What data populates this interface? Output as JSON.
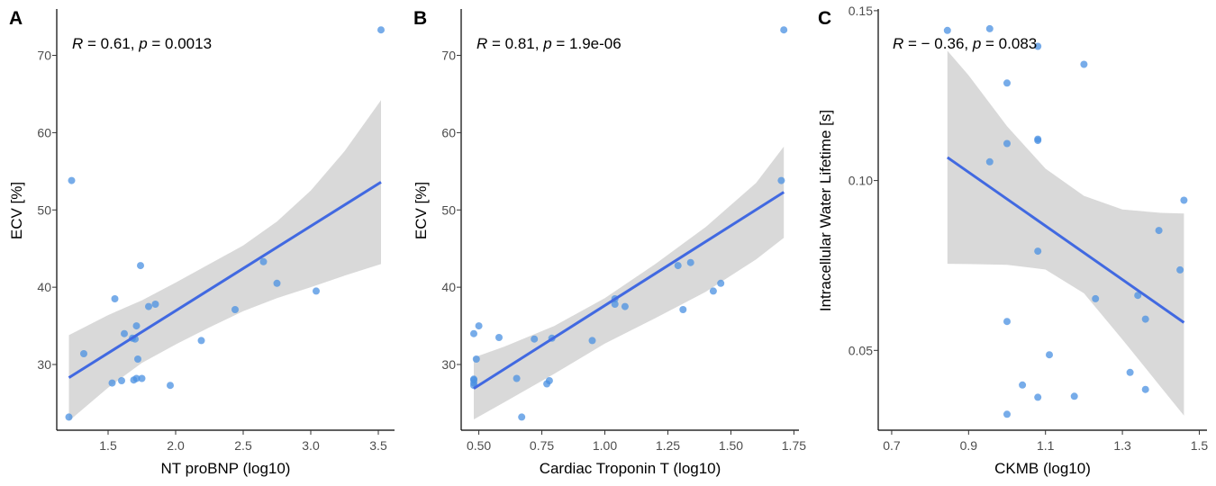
{
  "colors": {
    "point": "#4a90e2",
    "line": "#4169e1",
    "ribbon": "#d9d9d9",
    "axis": "#000000"
  },
  "chart_data": [
    {
      "type": "scatter",
      "panel": "A",
      "xlabel": "NT proBNP (log10)",
      "ylabel": "ECV [%]",
      "annotation": {
        "r_label": "R",
        "r_text": " = 0.61, ",
        "p_label": "p",
        "p_text": " = 0.0013"
      },
      "xlim": [
        1.12,
        3.62
      ],
      "ylim": [
        21.5,
        76
      ],
      "xticks": [
        1.5,
        2.0,
        2.5,
        3.0,
        3.5
      ],
      "xtick_labels": [
        "1.5",
        "2.0",
        "2.5",
        "3.0",
        "3.5"
      ],
      "yticks": [
        30,
        40,
        50,
        60,
        70
      ],
      "ytick_labels": [
        "30",
        "40",
        "50",
        "60",
        "70"
      ],
      "points": [
        [
          1.21,
          23.2
        ],
        [
          1.23,
          53.8
        ],
        [
          1.32,
          31.4
        ],
        [
          1.53,
          27.6
        ],
        [
          1.55,
          38.5
        ],
        [
          1.6,
          27.9
        ],
        [
          1.62,
          34.0
        ],
        [
          1.68,
          33.4
        ],
        [
          1.7,
          33.3
        ],
        [
          1.69,
          28.0
        ],
        [
          1.71,
          28.2
        ],
        [
          1.71,
          35.0
        ],
        [
          1.72,
          30.7
        ],
        [
          1.74,
          42.8
        ],
        [
          1.75,
          28.2
        ],
        [
          1.8,
          37.5
        ],
        [
          1.85,
          37.8
        ],
        [
          1.96,
          27.3
        ],
        [
          2.19,
          33.1
        ],
        [
          2.44,
          37.1
        ],
        [
          2.65,
          43.3
        ],
        [
          2.75,
          40.5
        ],
        [
          3.04,
          39.5
        ],
        [
          3.52,
          73.3
        ]
      ],
      "fit": {
        "x": [
          1.21,
          3.52
        ],
        "y": [
          28.3,
          53.6
        ]
      },
      "ribbon": {
        "x": [
          1.21,
          1.5,
          1.75,
          2.0,
          2.25,
          2.5,
          2.75,
          3.0,
          3.25,
          3.52
        ],
        "upper": [
          33.8,
          36.4,
          38.3,
          40.6,
          43.0,
          45.4,
          48.5,
          52.5,
          57.6,
          64.2
        ],
        "lower": [
          22.7,
          27.0,
          30.2,
          32.6,
          34.8,
          36.9,
          38.6,
          40.0,
          41.5,
          43.0
        ]
      }
    },
    {
      "type": "scatter",
      "panel": "B",
      "xlabel": "Cardiac Troponin T (log10)",
      "ylabel": "ECV [%]",
      "annotation": {
        "r_label": "R",
        "r_text": " = 0.81, ",
        "p_label": "p",
        "p_text": " = 1.9e-06"
      },
      "xlim": [
        0.43,
        1.77
      ],
      "ylim": [
        21.5,
        76
      ],
      "xticks": [
        0.5,
        0.75,
        1.0,
        1.25,
        1.5,
        1.75
      ],
      "xtick_labels": [
        "0.50",
        "0.75",
        "1.00",
        "1.25",
        "1.50",
        "1.75"
      ],
      "yticks": [
        30,
        40,
        50,
        60,
        70
      ],
      "ytick_labels": [
        "30",
        "40",
        "50",
        "60",
        "70"
      ],
      "points": [
        [
          0.48,
          34.0
        ],
        [
          0.48,
          28.0
        ],
        [
          0.48,
          27.6
        ],
        [
          0.48,
          27.3
        ],
        [
          0.48,
          28.1
        ],
        [
          0.49,
          30.7
        ],
        [
          0.5,
          35.0
        ],
        [
          0.58,
          33.5
        ],
        [
          0.65,
          28.2
        ],
        [
          0.67,
          23.2
        ],
        [
          0.72,
          33.3
        ],
        [
          0.77,
          27.5
        ],
        [
          0.78,
          27.9
        ],
        [
          0.79,
          33.4
        ],
        [
          0.95,
          33.1
        ],
        [
          1.04,
          38.5
        ],
        [
          1.04,
          37.8
        ],
        [
          1.08,
          37.5
        ],
        [
          1.29,
          42.8
        ],
        [
          1.31,
          37.1
        ],
        [
          1.34,
          43.2
        ],
        [
          1.43,
          39.5
        ],
        [
          1.46,
          40.5
        ],
        [
          1.7,
          53.8
        ],
        [
          1.71,
          73.3
        ]
      ],
      "fit": {
        "x": [
          0.48,
          1.71
        ],
        "y": [
          26.9,
          52.3
        ]
      },
      "ribbon": {
        "x": [
          0.48,
          0.6,
          0.8,
          1.0,
          1.2,
          1.4,
          1.6,
          1.71
        ],
        "upper": [
          30.9,
          32.3,
          35.0,
          38.6,
          43.0,
          47.8,
          53.5,
          58.2
        ],
        "lower": [
          22.9,
          25.1,
          28.8,
          32.7,
          36.0,
          39.4,
          43.6,
          46.4
        ]
      }
    },
    {
      "type": "scatter",
      "panel": "C",
      "xlabel": "CKMB (log10)",
      "ylabel": "Intracellular Water Lifetime [s]",
      "annotation": {
        "r_label": "R",
        "r_text": " = − 0.36, ",
        "p_label": "p",
        "p_text": " = 0.083"
      },
      "xlim": [
        0.665,
        1.52
      ],
      "ylim": [
        0.0265,
        0.1505
      ],
      "xticks": [
        0.7,
        0.9,
        1.1,
        1.3,
        1.5
      ],
      "xtick_labels": [
        "0.7",
        "0.9",
        "1.1",
        "1.3",
        "1.5"
      ],
      "yticks": [
        0.05,
        0.1,
        0.15
      ],
      "ytick_labels": [
        "0.05",
        "0.10",
        "0.15"
      ],
      "points": [
        [
          0.845,
          0.1442
        ],
        [
          0.955,
          0.1447
        ],
        [
          1.08,
          0.1395
        ],
        [
          1.2,
          0.1342
        ],
        [
          1.0,
          0.1287
        ],
        [
          1.08,
          0.1122
        ],
        [
          1.08,
          0.1118
        ],
        [
          1.0,
          0.1109
        ],
        [
          0.955,
          0.1055
        ],
        [
          1.46,
          0.0942
        ],
        [
          1.395,
          0.0853
        ],
        [
          1.08,
          0.0792
        ],
        [
          1.45,
          0.0737
        ],
        [
          1.23,
          0.0652
        ],
        [
          1.34,
          0.0662
        ],
        [
          1.36,
          0.0592
        ],
        [
          1.0,
          0.0585
        ],
        [
          1.11,
          0.0487
        ],
        [
          1.32,
          0.0435
        ],
        [
          1.04,
          0.0398
        ],
        [
          1.36,
          0.0385
        ],
        [
          1.08,
          0.0362
        ],
        [
          1.175,
          0.0365
        ],
        [
          1.0,
          0.0312
        ]
      ],
      "fit": {
        "x": [
          0.845,
          1.46
        ],
        "y": [
          0.1068,
          0.0582
        ]
      },
      "ribbon": {
        "x": [
          0.845,
          0.9,
          1.0,
          1.1,
          1.2,
          1.3,
          1.4,
          1.46
        ],
        "upper": [
          0.1382,
          0.131,
          0.116,
          0.1035,
          0.0955,
          0.0915,
          0.0905,
          0.0903
        ],
        "lower": [
          0.0755,
          0.0754,
          0.0752,
          0.0738,
          0.0668,
          0.0532,
          0.0392,
          0.0308
        ]
      }
    }
  ]
}
